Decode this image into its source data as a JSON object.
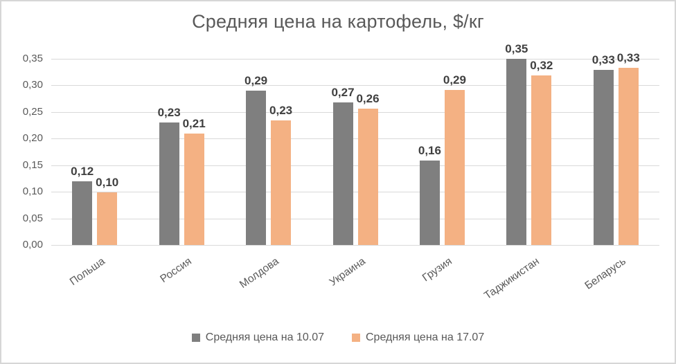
{
  "chart_data": {
    "type": "bar",
    "title": "Средняя цена на картофель, $/кг",
    "categories": [
      "Польша",
      "Россия",
      "Молдова",
      "Украина",
      "Грузия",
      "Таджикистан",
      "Беларусь"
    ],
    "series": [
      {
        "name": "Средняя цена на 10.07",
        "color": "#7f7f7f",
        "values": [
          0.12,
          0.23,
          0.29,
          0.27,
          0.16,
          0.35,
          0.33
        ],
        "labels": [
          "0,12",
          "0,23",
          "0,29",
          "0,27",
          "0,16",
          "0,35",
          "0,33"
        ],
        "display_heights": [
          0.12,
          0.23,
          0.29,
          0.268,
          0.159,
          0.35,
          0.329
        ]
      },
      {
        "name": "Средняя цена на 17.07",
        "color": "#f4b183",
        "values": [
          0.1,
          0.21,
          0.23,
          0.26,
          0.29,
          0.32,
          0.33
        ],
        "labels": [
          "0,10",
          "0,21",
          "0,23",
          "0,26",
          "0,29",
          "0,32",
          "0,33"
        ],
        "display_heights": [
          0.099,
          0.21,
          0.234,
          0.256,
          0.291,
          0.319,
          0.333
        ]
      }
    ],
    "ylim": [
      0,
      0.35
    ],
    "ytick_step": 0.05,
    "ytick_labels": [
      "0,00",
      "0,05",
      "0,10",
      "0,15",
      "0,20",
      "0,25",
      "0,30",
      "0,35"
    ],
    "decimal_separator": ",",
    "grid": true,
    "legend_position": "bottom",
    "colors": {
      "title_text": "#595959",
      "axis_text": "#595959",
      "bar_label_text": "#404040",
      "gridline": "#d9d9d9",
      "series1": "#7f7f7f",
      "series2": "#f4b183"
    }
  }
}
